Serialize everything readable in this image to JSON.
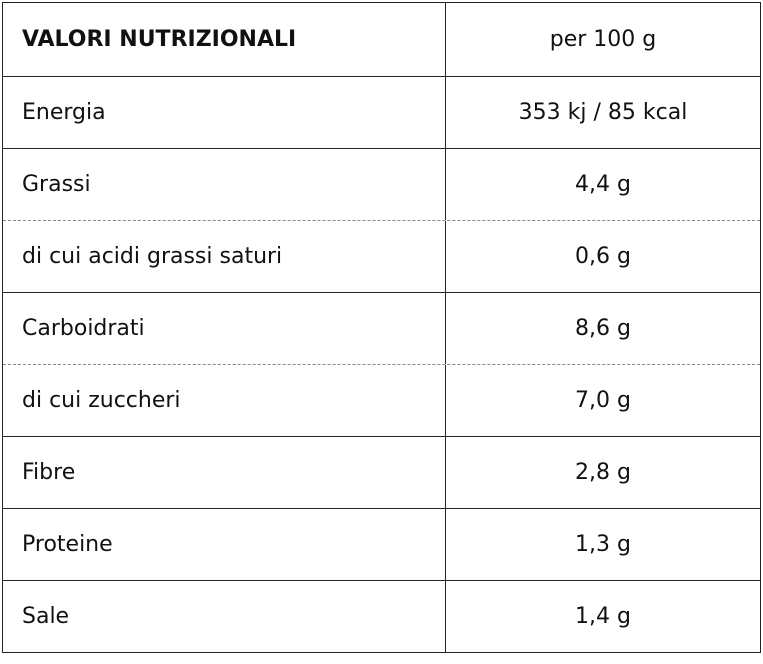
{
  "table": {
    "header": [
      "VALORI NUTRIZIONALI",
      "per 100 g"
    ],
    "rows": [
      [
        "Energia",
        "353 kj / 85 kcal"
      ],
      [
        "Grassi",
        "4,4 g"
      ],
      [
        "di cui acidi grassi saturi",
        "0,6 g"
      ],
      [
        "Carboidrati",
        "8,6 g"
      ],
      [
        "di cui zuccheri",
        "7,0 g"
      ],
      [
        "Fibre",
        "2,8 g"
      ],
      [
        "Proteine",
        "1,3 g"
      ],
      [
        "Sale",
        "1,4 g"
      ]
    ]
  }
}
